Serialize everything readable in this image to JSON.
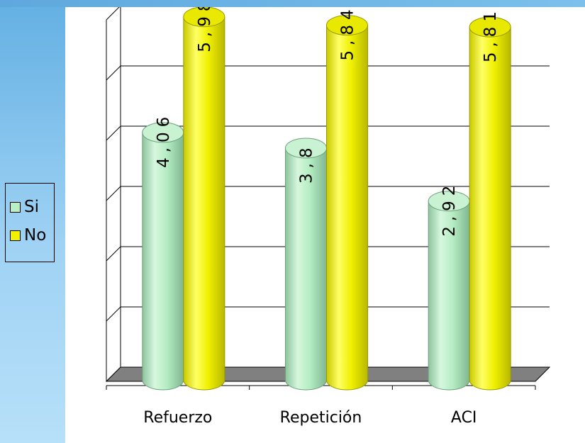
{
  "chart_data": {
    "type": "bar",
    "categories": [
      "Refuerzo",
      "Repetición",
      "ACI"
    ],
    "series": [
      {
        "name": "Si",
        "values": [
          4.06,
          3.8,
          2.92
        ],
        "labels": [
          "4,06",
          "3,8",
          "2,92"
        ],
        "color": "#b9efc6"
      },
      {
        "name": "No",
        "values": [
          5.98,
          5.84,
          5.81
        ],
        "labels": [
          "5,98",
          "5,84",
          "5,81"
        ],
        "color": "#f2f200"
      }
    ],
    "ylim": [
      0,
      6
    ],
    "grid": true,
    "legend_position": "left",
    "three_d": true,
    "floor_color": "#808080"
  }
}
